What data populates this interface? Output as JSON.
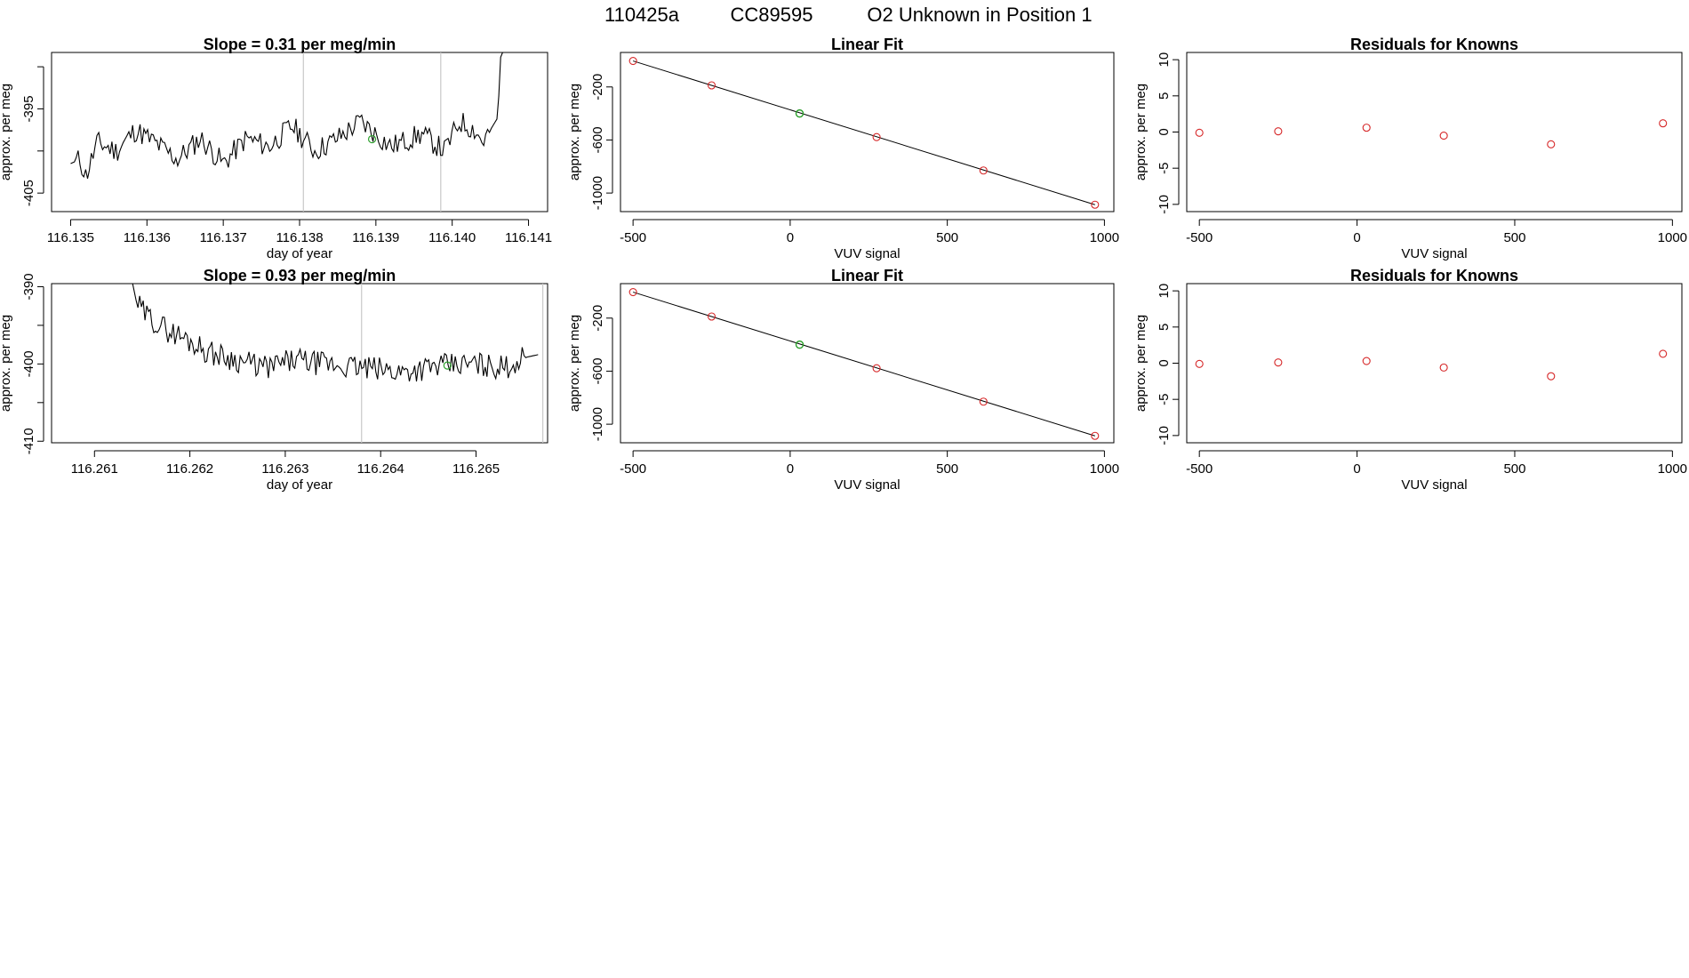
{
  "page_title": {
    "run": "110425a",
    "cylinder": "CC89595",
    "description": "O2 Unknown in Position  1"
  },
  "colors": {
    "trace": "#000000",
    "known": "#d62728",
    "unknown": "#2ca02c",
    "marker": "#c8c8c8"
  },
  "chart_data": [
    {
      "id": "ts1",
      "type": "line",
      "title": "Slope =  0.31  per meg/min",
      "xlabel": "day of year",
      "ylabel": "approx. per meg",
      "xlim": [
        116.13475,
        116.14125
      ],
      "ylim": [
        -407.2,
        -388.3
      ],
      "xticks": [
        "116.135",
        "116.136",
        "116.137",
        "116.138",
        "116.139",
        "116.140",
        "116.141"
      ],
      "yticks": [
        "-395",
        "-405"
      ],
      "ytick_positions": [
        -400,
        -395,
        -390,
        -405
      ],
      "markers_x": [
        116.13805,
        116.13985
      ],
      "unknown_point": [
        116.13895,
        -398.6
      ],
      "anchors": [
        [
          116.135,
          -401.5
        ],
        [
          116.13512,
          -401
        ],
        [
          116.1352,
          -403
        ],
        [
          116.13535,
          -399
        ],
        [
          116.1356,
          -400
        ],
        [
          116.13585,
          -397.5
        ],
        [
          116.1361,
          -399
        ],
        [
          116.1364,
          -401
        ],
        [
          116.1367,
          -398.5
        ],
        [
          116.137,
          -401.5
        ],
        [
          116.1373,
          -398.5
        ],
        [
          116.1376,
          -399.5
        ],
        [
          116.1379,
          -397
        ],
        [
          116.1382,
          -400
        ],
        [
          116.1385,
          -398.5
        ],
        [
          116.1388,
          -396.5
        ],
        [
          116.1392,
          -399.5
        ],
        [
          116.1396,
          -398
        ],
        [
          116.1399,
          -400
        ],
        [
          116.1401,
          -396.5
        ],
        [
          116.1403,
          -397.5
        ],
        [
          116.1404,
          -399
        ],
        [
          116.1406,
          -396
        ],
        [
          116.14063,
          -389
        ],
        [
          116.14066,
          -388.3
        ]
      ],
      "noise_amp": 1.4,
      "noise_seed": 11
    },
    {
      "id": "fit1",
      "type": "scatter",
      "title": "Linear Fit",
      "xlabel": "VUV signal",
      "ylabel": "approx. per meg",
      "xlim": [
        -540,
        1030
      ],
      "ylim": [
        -1140,
        60
      ],
      "xticks": [
        -500,
        0,
        500,
        1000
      ],
      "yticks": [
        -200,
        -600,
        -1000
      ],
      "fit_line": [
        [
          -500,
          -4
        ],
        [
          970,
          -1088
        ]
      ],
      "knowns": [
        [
          -500,
          -4
        ],
        [
          -250,
          -188
        ],
        [
          275,
          -578
        ],
        [
          615,
          -830
        ],
        [
          970,
          -1088
        ]
      ],
      "unknown": [
        [
          30,
          -400
        ]
      ]
    },
    {
      "id": "res1",
      "type": "scatter",
      "title": "Residuals for Knowns",
      "xlabel": "VUV signal",
      "ylabel": "approx. per meg",
      "xlim": [
        -540,
        1030
      ],
      "ylim": [
        -11,
        11
      ],
      "xticks": [
        -500,
        0,
        500,
        1000
      ],
      "yticks": [
        10,
        5,
        0,
        -5,
        -10
      ],
      "knowns": [
        [
          -500,
          -0.1
        ],
        [
          -250,
          0.1
        ],
        [
          30,
          0.6
        ],
        [
          275,
          -0.5
        ],
        [
          615,
          -1.7
        ],
        [
          970,
          1.2
        ]
      ]
    },
    {
      "id": "ts2",
      "type": "line",
      "title": "Slope =  0.93  per meg/min",
      "xlabel": "day of year",
      "ylabel": "approx. per meg",
      "xlim": [
        116.26055,
        116.26575
      ],
      "ylim": [
        -410.2,
        -389.6
      ],
      "xticks": [
        "116.261",
        "116.262",
        "116.263",
        "116.264",
        "116.265"
      ],
      "yticks": [
        "-390",
        "-400",
        "-410"
      ],
      "ytick_positions": [
        -390,
        -395,
        -400,
        -405,
        -410
      ],
      "markers_x": [
        116.2638,
        116.2657
      ],
      "unknown_point": [
        116.2647,
        -400.2
      ],
      "anchors": [
        [
          116.2614,
          -389.6
        ],
        [
          116.26144,
          -392
        ],
        [
          116.26152,
          -393.5
        ],
        [
          116.26175,
          -395.5
        ],
        [
          116.262,
          -397
        ],
        [
          116.2622,
          -398.5
        ],
        [
          116.2625,
          -399.5
        ],
        [
          116.2628,
          -400.5
        ],
        [
          116.2631,
          -399.5
        ],
        [
          116.2634,
          -400
        ],
        [
          116.2638,
          -400.5
        ],
        [
          116.2642,
          -401
        ],
        [
          116.2646,
          -400.3
        ],
        [
          116.265,
          -400
        ],
        [
          116.2653,
          -400.5
        ],
        [
          116.2655,
          -399.2
        ],
        [
          116.26565,
          -398.8
        ]
      ],
      "noise_amp": 1.6,
      "noise_seed": 29
    },
    {
      "id": "fit2",
      "type": "scatter",
      "title": "Linear Fit",
      "xlabel": "VUV signal",
      "ylabel": "approx. per meg",
      "xlim": [
        -540,
        1030
      ],
      "ylim": [
        -1140,
        60
      ],
      "xticks": [
        -500,
        0,
        500,
        1000
      ],
      "yticks": [
        -200,
        -600,
        -1000
      ],
      "fit_line": [
        [
          -500,
          -4
        ],
        [
          970,
          -1088
        ]
      ],
      "knowns": [
        [
          -500,
          -4
        ],
        [
          -250,
          -188
        ],
        [
          275,
          -578
        ],
        [
          615,
          -830
        ],
        [
          970,
          -1088
        ]
      ],
      "unknown": [
        [
          30,
          -400
        ]
      ]
    },
    {
      "id": "res2",
      "type": "scatter",
      "title": "Residuals for Knowns",
      "xlabel": "VUV signal",
      "ylabel": "approx. per meg",
      "xlim": [
        -540,
        1030
      ],
      "ylim": [
        -11,
        11
      ],
      "xticks": [
        -500,
        0,
        500,
        1000
      ],
      "yticks": [
        10,
        5,
        0,
        -5,
        -10
      ],
      "knowns": [
        [
          -500,
          -0.1
        ],
        [
          -250,
          0.1
        ],
        [
          30,
          0.3
        ],
        [
          275,
          -0.6
        ],
        [
          615,
          -1.8
        ],
        [
          970,
          1.3
        ]
      ]
    }
  ]
}
